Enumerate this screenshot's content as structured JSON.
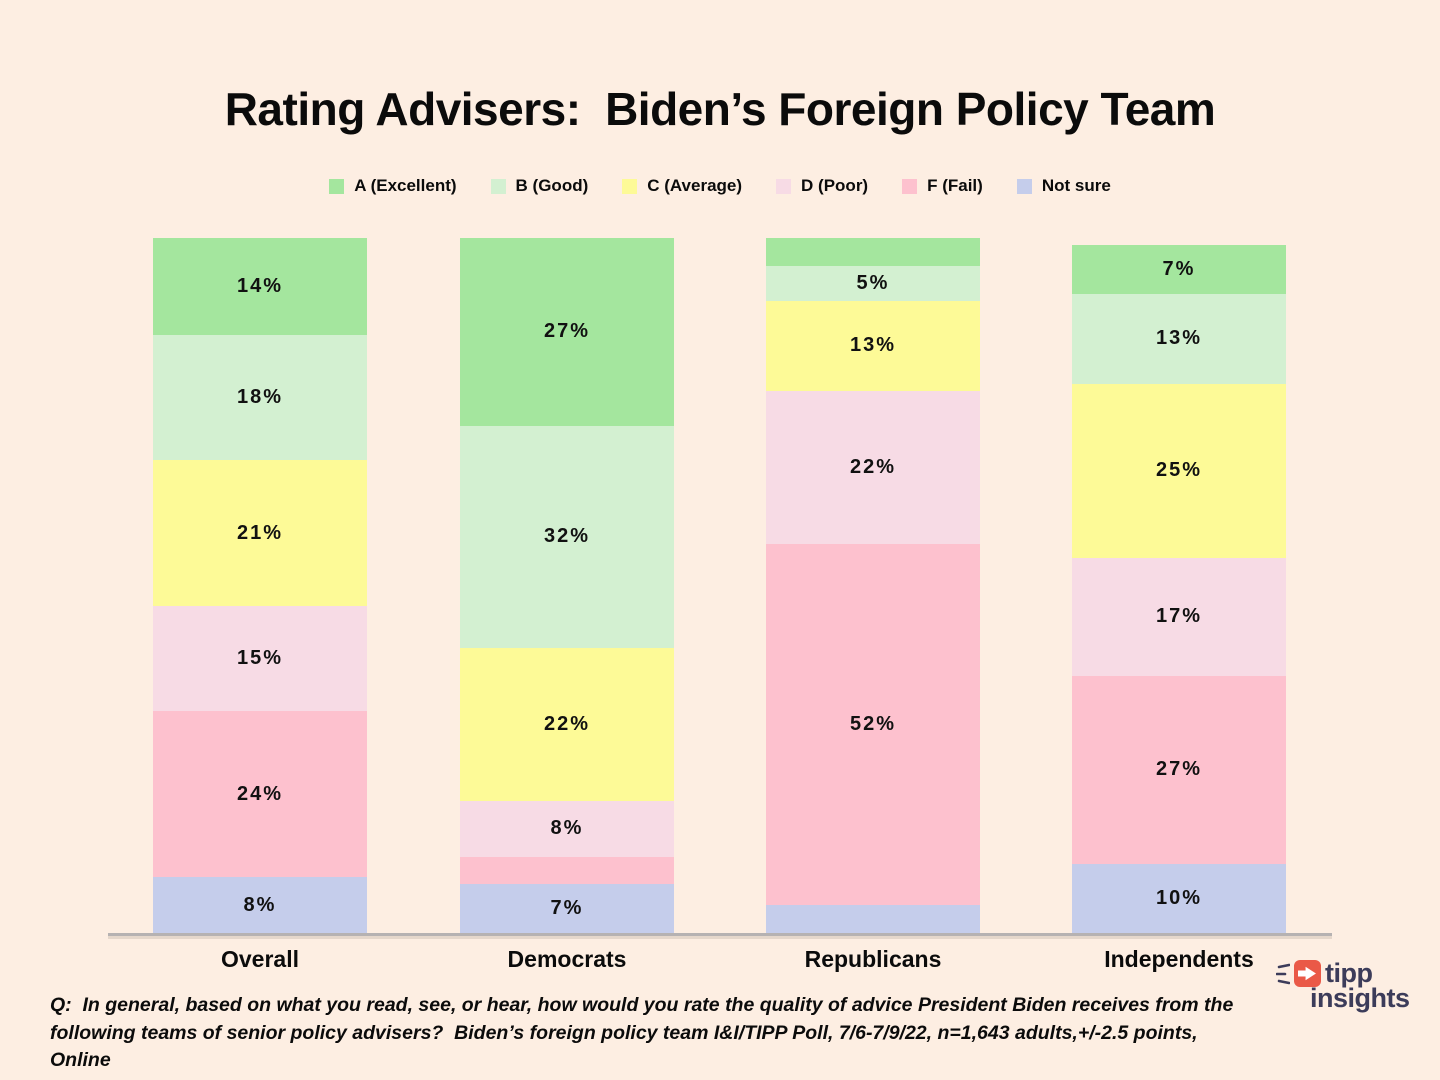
{
  "page": {
    "background_color": "#fdeee2",
    "axis_color": "#b6b2b2",
    "text_color": "#0b0b0b"
  },
  "title": "Rating Advisers:  Biden’s Foreign Policy Team",
  "legend": {
    "items": [
      {
        "label": "A (Excellent)",
        "color": "#a4e69e"
      },
      {
        "label": "B (Good)",
        "color": "#d3f0d1"
      },
      {
        "label": "C (Average)",
        "color": "#fdfa97"
      },
      {
        "label": "D (Poor)",
        "color": "#f7dbe5"
      },
      {
        "label": "F (Fail)",
        "color": "#fdc1ce"
      },
      {
        "label": "Not sure",
        "color": "#c5cdeb"
      }
    ]
  },
  "chart_data": {
    "type": "bar",
    "subtype": "stacked-vertical",
    "title": "Rating Advisers:  Biden’s Foreign Policy Team",
    "categories": [
      "Overall",
      "Democrats",
      "Republicans",
      "Independents"
    ],
    "series": [
      {
        "name": "A (Excellent)",
        "color": "#a4e69e",
        "values": [
          14,
          27,
          4,
          7
        ]
      },
      {
        "name": "B (Good)",
        "color": "#d3f0d1",
        "values": [
          18,
          32,
          5,
          13
        ]
      },
      {
        "name": "C (Average)",
        "color": "#fdfa97",
        "values": [
          21,
          22,
          13,
          25
        ]
      },
      {
        "name": "D (Poor)",
        "color": "#f7dbe5",
        "values": [
          15,
          8,
          22,
          17
        ]
      },
      {
        "name": "F (Fail)",
        "color": "#fdc1ce",
        "values": [
          24,
          4,
          52,
          27
        ]
      },
      {
        "name": "Not sure",
        "color": "#c5cdeb",
        "values": [
          8,
          7,
          4,
          10
        ]
      }
    ],
    "value_unit": "%",
    "label_format": "{value}%",
    "min_value_for_label": 5,
    "stack_order": "top-to-bottom",
    "legend_position": "top",
    "grid": false,
    "ylim": [
      0,
      100
    ]
  },
  "footer": {
    "question_line1": "Q:  In general, based on what you read, see, or hear, how would you rate the quality of advice President Biden receives from the",
    "question_line2": "following teams of senior policy advisers?  Biden’s foreign policy team I&I/TIPP Poll, 7/6-7/9/22, n=1,643 adults,+/-2.5 points, Online"
  },
  "logo": {
    "text_top": "tipp",
    "text_bottom": "insights",
    "badge_color": "#ea5947",
    "text_color": "#3c3c5a",
    "icon": "arrow-right-badge-icon"
  }
}
